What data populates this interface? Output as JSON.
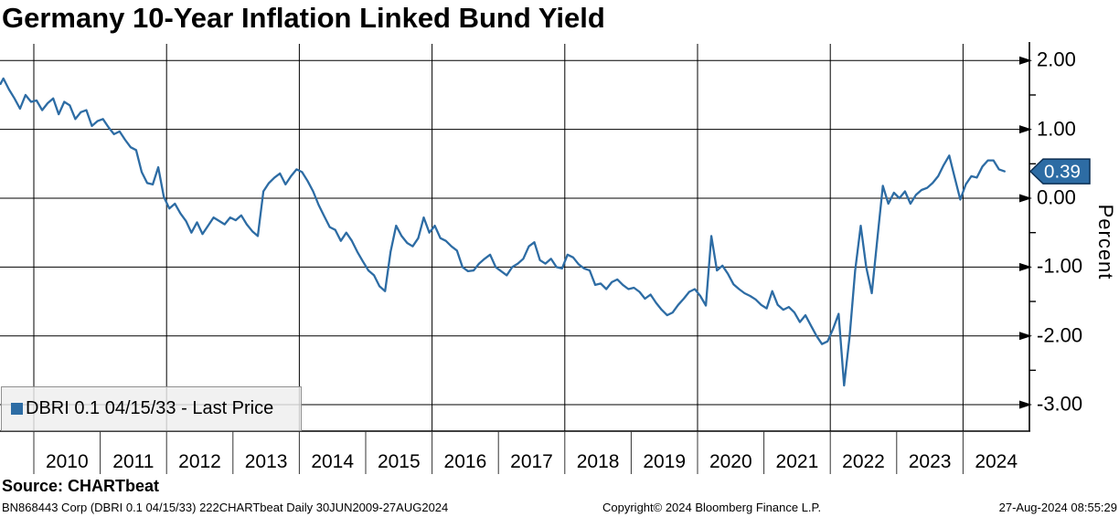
{
  "header": {
    "title": "Germany 10-Year Inflation Linked Bund Yield"
  },
  "chart_data": {
    "type": "line",
    "title": "Germany 10-Year Inflation Linked Bund Yield",
    "xlabel": "",
    "ylabel": "Percent",
    "ylim": [
      -3.4,
      2.25
    ],
    "x_range": "30JUN2009-27AUG2024",
    "grid": true,
    "y_major_ticks": [
      {
        "value": 2,
        "label": "2.00"
      },
      {
        "value": 1,
        "label": "1.00"
      },
      {
        "value": 0,
        "label": "0.00"
      },
      {
        "value": -1,
        "label": "-1.00"
      },
      {
        "value": -2,
        "label": "-2.00"
      },
      {
        "value": -3,
        "label": "-3.00"
      }
    ],
    "y_minor_ticks": [
      1.5,
      0.5,
      -0.5,
      -1.5,
      -2.5
    ],
    "x_year_labels": [
      "2010",
      "2011",
      "2012",
      "2013",
      "2014",
      "2015",
      "2016",
      "2017",
      "2018",
      "2019",
      "2020",
      "2021",
      "2022",
      "2023",
      "2024"
    ],
    "x_gridline_years": [
      2010,
      2012,
      2014,
      2016,
      2018,
      2020,
      2022,
      2024
    ],
    "series": [
      {
        "name": "DBRI 0.1 04/15/33 - Last Price",
        "color": "#2D6CA4",
        "frequency": "monthly",
        "start_month": "2009-06",
        "end_date": "27-Aug-2024",
        "last_price": 0.39,
        "last_price_label": "0.39",
        "values": [
          1.66,
          1.74,
          1.58,
          1.45,
          1.3,
          1.5,
          1.4,
          1.42,
          1.28,
          1.38,
          1.45,
          1.22,
          1.4,
          1.35,
          1.15,
          1.25,
          1.28,
          1.05,
          1.12,
          1.15,
          1.03,
          0.93,
          0.97,
          0.85,
          0.74,
          0.7,
          0.38,
          0.22,
          0.2,
          0.45,
          0.02,
          -0.15,
          -0.08,
          -0.22,
          -0.33,
          -0.5,
          -0.35,
          -0.52,
          -0.4,
          -0.28,
          -0.33,
          -0.38,
          -0.28,
          -0.32,
          -0.25,
          -0.38,
          -0.48,
          -0.55,
          0.1,
          0.22,
          0.3,
          0.36,
          0.2,
          0.32,
          0.42,
          0.38,
          0.25,
          0.1,
          -0.1,
          -0.26,
          -0.42,
          -0.46,
          -0.62,
          -0.5,
          -0.62,
          -0.78,
          -0.92,
          -1.05,
          -1.12,
          -1.28,
          -1.35,
          -0.78,
          -0.4,
          -0.55,
          -0.65,
          -0.7,
          -0.58,
          -0.28,
          -0.5,
          -0.4,
          -0.58,
          -0.62,
          -0.7,
          -0.76,
          -1.0,
          -1.06,
          -1.05,
          -0.95,
          -0.88,
          -0.82,
          -1.0,
          -1.06,
          -1.12,
          -1.0,
          -0.95,
          -0.88,
          -0.7,
          -0.64,
          -0.9,
          -0.95,
          -0.88,
          -1.0,
          -1.02,
          -0.82,
          -0.86,
          -0.96,
          -1.02,
          -1.05,
          -1.26,
          -1.24,
          -1.32,
          -1.22,
          -1.18,
          -1.26,
          -1.32,
          -1.3,
          -1.36,
          -1.46,
          -1.4,
          -1.52,
          -1.62,
          -1.7,
          -1.66,
          -1.55,
          -1.46,
          -1.36,
          -1.32,
          -1.42,
          -1.56,
          -0.55,
          -1.05,
          -0.98,
          -1.1,
          -1.25,
          -1.32,
          -1.38,
          -1.42,
          -1.47,
          -1.55,
          -1.6,
          -1.35,
          -1.55,
          -1.62,
          -1.58,
          -1.66,
          -1.8,
          -1.7,
          -1.85,
          -2.0,
          -2.12,
          -2.08,
          -1.9,
          -1.68,
          -2.72,
          -2.0,
          -1.05,
          -0.4,
          -1.0,
          -1.38,
          -0.6,
          0.18,
          -0.08,
          0.08,
          0.0,
          0.1,
          -0.08,
          0.05,
          0.12,
          0.15,
          0.22,
          0.32,
          0.48,
          0.62,
          0.3,
          -0.02,
          0.2,
          0.32,
          0.3,
          0.46,
          0.55,
          0.55,
          0.42,
          0.39
        ]
      }
    ],
    "legend_position": "bottom-left-inside"
  },
  "legend": {
    "items": [
      {
        "label": "DBRI 0.1 04/15/33 - Last Price",
        "color": "#2D6CA4"
      }
    ]
  },
  "price_tag": {
    "value": "0.39",
    "fill": "#2D6CA4",
    "border": "#0C2E52",
    "text_color": "#FFFFFF"
  },
  "footer": {
    "source_label": "Source: CHARTbeat",
    "meta_left": "BN868443 Corp (DBRI 0.1 04/15/33) 222CHARTbeat  Daily 30JUN2009-27AUG2024",
    "copyright": "Copyright© 2024 Bloomberg Finance L.P.",
    "timestamp": "27-Aug-2024 08:55:29"
  },
  "colors": {
    "grid": "#000000",
    "axis": "#000000",
    "background": "#FFFFFF",
    "legend_bg": "#EEEEEE"
  }
}
